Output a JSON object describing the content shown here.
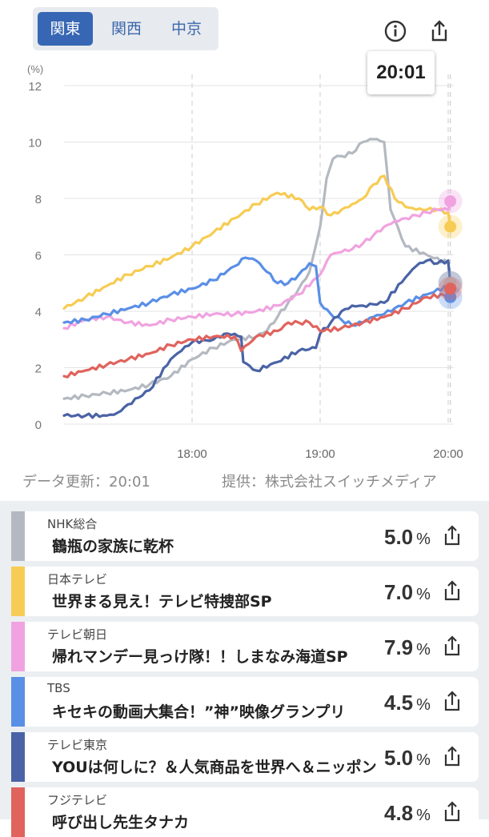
{
  "region_tabs": [
    {
      "label": "関東",
      "active": true
    },
    {
      "label": "関西",
      "active": false
    },
    {
      "label": "中京",
      "active": false
    }
  ],
  "header_icons": {
    "info": "info-icon",
    "share": "share-icon"
  },
  "time_bubble": "20:01",
  "chart_data": {
    "type": "line",
    "y_unit_label": "(%)",
    "ylim": [
      0,
      12
    ],
    "yticks": [
      0,
      2,
      4,
      6,
      8,
      10,
      12
    ],
    "xlim": [
      "17:00",
      "20:01"
    ],
    "xticks": [
      "18:00",
      "19:00",
      "20:00"
    ],
    "grid": true,
    "current_time": "20:01",
    "series": [
      {
        "name": "NHK総合",
        "color": "#b4b9c1",
        "x": [
          "17:00",
          "17:10",
          "17:20",
          "17:30",
          "17:40",
          "17:50",
          "18:00",
          "18:10",
          "18:20",
          "18:30",
          "18:35",
          "18:40",
          "18:45",
          "18:50",
          "18:55",
          "19:00",
          "19:03",
          "19:06",
          "19:10",
          "19:15",
          "19:20",
          "19:25",
          "19:30",
          "19:33",
          "19:40",
          "19:50",
          "20:00",
          "20:01"
        ],
        "y": [
          0.9,
          1.0,
          1.1,
          1.2,
          1.4,
          1.7,
          2.3,
          2.7,
          3.0,
          3.1,
          3.3,
          3.8,
          4.3,
          4.8,
          5.4,
          7.0,
          8.7,
          9.4,
          9.5,
          9.6,
          10.0,
          10.1,
          10.0,
          7.6,
          6.3,
          6.0,
          5.7,
          5.0
        ]
      },
      {
        "name": "日本テレビ",
        "color": "#f7cc54",
        "x": [
          "17:00",
          "17:10",
          "17:20",
          "17:30",
          "17:40",
          "17:50",
          "18:00",
          "18:10",
          "18:20",
          "18:30",
          "18:40",
          "18:50",
          "18:55",
          "19:00",
          "19:05",
          "19:10",
          "19:15",
          "19:20",
          "19:25",
          "19:30",
          "19:35",
          "19:40",
          "19:45",
          "19:50",
          "19:55",
          "20:00",
          "20:01"
        ],
        "y": [
          4.1,
          4.5,
          4.9,
          5.3,
          5.6,
          5.9,
          6.3,
          6.8,
          7.3,
          7.8,
          8.2,
          8.0,
          7.6,
          7.7,
          7.4,
          7.6,
          7.8,
          8.0,
          8.5,
          8.8,
          8.0,
          7.7,
          7.6,
          7.6,
          7.6,
          7.5,
          7.0
        ]
      },
      {
        "name": "テレビ朝日",
        "color": "#f0a3e0",
        "x": [
          "17:00",
          "17:10",
          "17:20",
          "17:30",
          "17:40",
          "17:50",
          "18:00",
          "18:10",
          "18:20",
          "18:30",
          "18:40",
          "18:50",
          "19:00",
          "19:05",
          "19:10",
          "19:15",
          "19:20",
          "19:25",
          "19:30",
          "19:35",
          "19:40",
          "19:45",
          "19:50",
          "19:55",
          "20:00",
          "20:01"
        ],
        "y": [
          3.4,
          3.7,
          3.8,
          3.6,
          3.5,
          3.7,
          3.8,
          3.9,
          3.9,
          4.0,
          4.2,
          4.6,
          5.3,
          6.0,
          6.1,
          6.2,
          6.4,
          6.7,
          7.0,
          7.2,
          7.3,
          7.4,
          7.5,
          7.6,
          7.6,
          7.9
        ]
      },
      {
        "name": "TBS",
        "color": "#5a8fe6",
        "x": [
          "17:00",
          "17:10",
          "17:20",
          "17:30",
          "17:40",
          "17:50",
          "18:00",
          "18:10",
          "18:20",
          "18:25",
          "18:30",
          "18:35",
          "18:40",
          "18:45",
          "18:50",
          "18:55",
          "18:58",
          "19:00",
          "19:05",
          "19:10",
          "19:15",
          "19:20",
          "19:25",
          "19:30",
          "19:40",
          "19:50",
          "20:00",
          "20:01"
        ],
        "y": [
          3.6,
          3.7,
          3.9,
          4.1,
          4.3,
          4.6,
          4.8,
          5.1,
          5.6,
          5.9,
          5.8,
          5.4,
          5.0,
          5.0,
          5.3,
          5.7,
          5.6,
          4.3,
          3.9,
          3.7,
          3.5,
          3.6,
          3.8,
          3.9,
          4.3,
          4.6,
          4.9,
          4.5
        ]
      },
      {
        "name": "テレビ東京",
        "color": "#4a63a6",
        "x": [
          "17:00",
          "17:10",
          "17:20",
          "17:25",
          "17:30",
          "17:40",
          "17:50",
          "17:55",
          "18:00",
          "18:10",
          "18:15",
          "18:20",
          "18:23",
          "18:24",
          "18:30",
          "18:40",
          "18:50",
          "18:58",
          "19:00",
          "19:05",
          "19:10",
          "19:15",
          "19:20",
          "19:30",
          "19:40",
          "19:45",
          "19:50",
          "19:55",
          "20:00",
          "20:01"
        ],
        "y": [
          0.3,
          0.3,
          0.3,
          0.4,
          0.7,
          1.2,
          2.3,
          2.6,
          2.9,
          3.0,
          3.2,
          3.2,
          3.1,
          2.2,
          1.9,
          2.2,
          2.6,
          2.7,
          3.2,
          3.6,
          4.0,
          4.2,
          4.2,
          4.3,
          5.2,
          5.6,
          5.8,
          5.7,
          5.8,
          5.0
        ]
      },
      {
        "name": "フジテレビ",
        "color": "#e0635d",
        "x": [
          "17:00",
          "17:10",
          "17:20",
          "17:30",
          "17:40",
          "17:50",
          "18:00",
          "18:10",
          "18:20",
          "18:23",
          "18:30",
          "18:40",
          "18:45",
          "18:50",
          "18:55",
          "19:00",
          "19:10",
          "19:20",
          "19:30",
          "19:40",
          "19:50",
          "20:00",
          "20:01"
        ],
        "y": [
          1.7,
          1.9,
          2.1,
          2.3,
          2.5,
          2.8,
          3.0,
          3.1,
          3.1,
          2.6,
          3.1,
          3.3,
          3.6,
          3.6,
          3.6,
          3.3,
          3.4,
          3.6,
          3.8,
          4.1,
          4.5,
          4.6,
          4.8
        ]
      }
    ]
  },
  "footer": {
    "updated": "データ更新：20:01",
    "provider": "提供：株式会社スイッチメディア"
  },
  "programs": [
    {
      "channel": "NHK総合",
      "title": "鶴瓶の家族に乾杯",
      "rating": "5.0",
      "unit": "%",
      "color": "#b4b9c1"
    },
    {
      "channel": "日本テレビ",
      "title": "世界まる見え！テレビ特捜部SP",
      "rating": "7.0",
      "unit": "%",
      "color": "#f7cc54"
    },
    {
      "channel": "テレビ朝日",
      "title": "帰れマンデー見っけ隊！！しまなみ海道SP",
      "rating": "7.9",
      "unit": "%",
      "color": "#f0a3e0"
    },
    {
      "channel": "TBS",
      "title": "キセキの動画大集合！”神”映像グランプリ",
      "rating": "4.5",
      "unit": "%",
      "color": "#5a8fe6"
    },
    {
      "channel": "テレビ東京",
      "title": "YOUは何しに？＆人気商品を世界へ＆ニッポン",
      "rating": "5.0",
      "unit": "%",
      "color": "#4a63a6"
    },
    {
      "channel": "フジテレビ",
      "title": "呼び出し先生タナカ",
      "rating": "4.8",
      "unit": "%",
      "color": "#e0635d"
    }
  ]
}
